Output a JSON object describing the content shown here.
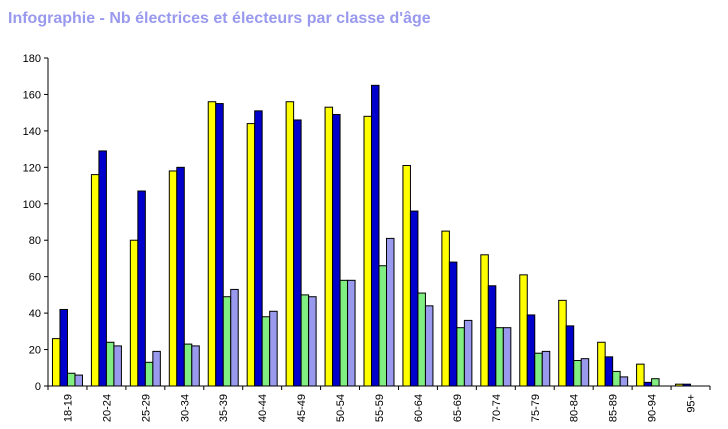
{
  "chart_data": {
    "type": "bar",
    "title": "Infographie - Nb électrices et électeurs par classe d'âge",
    "categories": [
      "18-19",
      "20-24",
      "25-29",
      "30-34",
      "35-39",
      "40-44",
      "45-49",
      "50-54",
      "55-59",
      "60-64",
      "65-69",
      "70-74",
      "75-79",
      "80-84",
      "85-89",
      "90-94",
      "95+"
    ],
    "series": [
      {
        "color": "#ffff00",
        "values": [
          26,
          116,
          80,
          118,
          156,
          144,
          156,
          153,
          148,
          121,
          85,
          72,
          61,
          47,
          24,
          12,
          1
        ]
      },
      {
        "color": "#0000cc",
        "values": [
          42,
          129,
          107,
          120,
          155,
          151,
          146,
          149,
          165,
          96,
          68,
          55,
          39,
          33,
          16,
          2,
          1
        ]
      },
      {
        "color": "#80ee80",
        "values": [
          7,
          24,
          13,
          23,
          49,
          38,
          50,
          58,
          66,
          51,
          32,
          32,
          18,
          14,
          8,
          4,
          0
        ]
      },
      {
        "color": "#9999ee",
        "values": [
          6,
          22,
          19,
          22,
          53,
          41,
          49,
          58,
          81,
          44,
          36,
          32,
          19,
          15,
          5,
          0,
          0
        ]
      }
    ],
    "yticks": [
      "0",
      "20",
      "40",
      "60",
      "80",
      "100",
      "120",
      "140",
      "160",
      "180"
    ],
    "ylim": [
      0,
      180
    ],
    "xlabel": "",
    "ylabel": "",
    "grid": false,
    "legend": "none"
  }
}
